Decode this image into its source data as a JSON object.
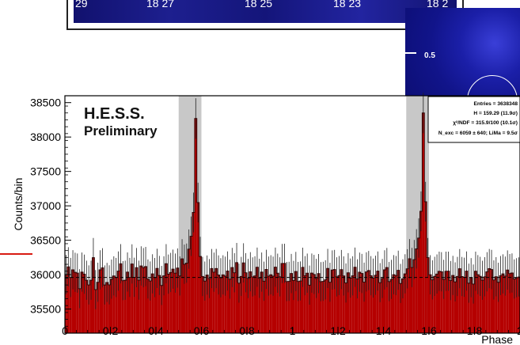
{
  "skymap": {
    "tick_labels": [
      "29",
      "18 27",
      "18 25",
      "18 23",
      "18 2"
    ]
  },
  "inset": {
    "label": "0.5"
  },
  "chart_data": {
    "type": "bar",
    "style": "histogram",
    "xlabel": "Phase",
    "ylabel": "Counts/bin",
    "xlim": [
      0,
      2
    ],
    "ylim": [
      35150,
      38600
    ],
    "x_ticks": [
      0,
      0.2,
      0.4,
      0.6,
      0.8,
      1,
      1.2,
      1.4,
      1.6,
      1.8,
      2
    ],
    "x_tick_labels": [
      "0",
      "0.2",
      "0.4",
      "0.6",
      "0.8",
      "1",
      "1.2",
      "1.4",
      "1.6",
      "1.8",
      "2"
    ],
    "y_ticks": [
      35500,
      36000,
      36500,
      37000,
      37500,
      38000,
      38500
    ],
    "y_tick_labels": [
      "35500",
      "36000",
      "36500",
      "37000",
      "37500",
      "38000",
      "38500"
    ],
    "baseline": 35960,
    "on_regions": [
      [
        0.5,
        0.6
      ],
      [
        1.5,
        1.6
      ]
    ],
    "watermark": [
      "H.E.S.S.",
      "Preliminary"
    ],
    "stats_box": [
      "Entries = 3638348",
      "H = 159.29 (11.9σ)",
      "χ²/NDF = 315.9/100 (10.1σ)",
      "N_exc = 6059 ± 640; LiMa = 9.5σ"
    ],
    "bin_width": 0.01,
    "bins_start": 0.005,
    "values": [
      36001,
      36114,
      35959,
      36071,
      36034,
      36023,
      35796,
      36037,
      36007,
      35919,
      35851,
      35919,
      36247,
      35783,
      35890,
      36070,
      36100,
      35850,
      35887,
      35852,
      35935,
      35982,
      35959,
      36052,
      36158,
      35913,
      35919,
      36038,
      35960,
      36156,
      35962,
      36102,
      35920,
      36127,
      36102,
      36118,
      35937,
      35908,
      36012,
      35958,
      36091,
      35988,
      35843,
      35983,
      36159,
      36008,
      36032,
      36080,
      36022,
      36096,
      35981,
      36230,
      36151,
      36167,
      36371,
      36558,
      36905,
      38270,
      37048,
      36264,
      35974,
      35907,
      35994,
      35943,
      36089,
      36036,
      36089,
      35996,
      35955,
      35997,
      35978,
      36053,
      35934,
      36104,
      36028,
      36176,
      35877,
      35974,
      36171,
      36028,
      35945,
      36042,
      35967,
      35982,
      36108,
      35947,
      36037,
      35905,
      36077,
      35979,
      35998,
      35978,
      36109,
      36021,
      35968,
      36162,
      36164,
      35900,
      35903,
      36017,
      35916,
      36046,
      35901,
      35908,
      36107,
      35985,
      36022,
      35848,
      36023,
      36003,
      35945,
      36016,
      35898,
      35903,
      35925,
      36090,
      35890,
      36068,
      36075,
      35968,
      35987,
      36074,
      35981,
      35879,
      36028,
      35950,
      35983,
      36108,
      35939,
      36036,
      36017,
      35891,
      36040,
      36060,
      35985,
      35950,
      35991,
      36052,
      35884,
      35944,
      36070,
      36103,
      35900,
      35931,
      36000,
      35987,
      36064,
      35872,
      35940,
      36012,
      36085,
      36231,
      36104,
      36219,
      36375,
      36532,
      36921,
      38350,
      37060,
      36247,
      35998,
      35924,
      35975,
      36009,
      36049,
      36042,
      35932,
      36049,
      36050,
      35914,
      35989,
      35895,
      35974,
      36087,
      35973,
      35962,
      36052,
      35876,
      35956,
      35864,
      36050,
      36000,
      35975,
      35918,
      35969,
      36042,
      36088,
      36075,
      35923,
      35970,
      35889,
      35986,
      36011,
      35979,
      36068,
      36016,
      36024,
      35937,
      35955,
      35966
    ]
  }
}
